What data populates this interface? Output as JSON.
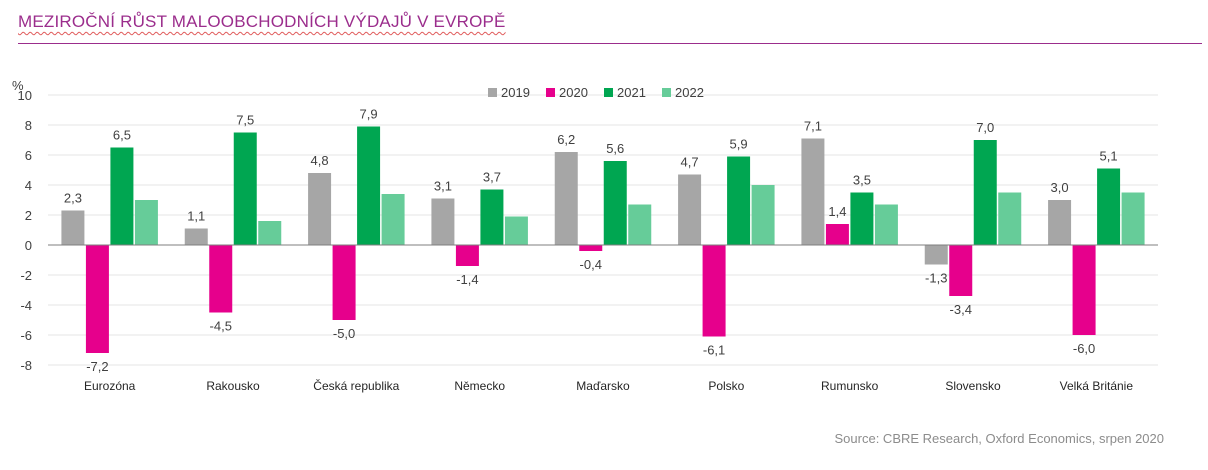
{
  "header": {
    "title": "MEZIROČNÍ RŮST MALOOBCHODNÍCH VÝDAJŮ V EVROPĚ"
  },
  "footer": {
    "source": "Source: CBRE Research, Oxford Economics, srpen 2020"
  },
  "chart_data": {
    "type": "bar",
    "title": "MEZIROČNÍ RŮST MALOOBCHODNÍCH VÝDAJŮ V EVROPĚ",
    "ylabel": "%",
    "xlabel": "",
    "ylim": [
      -8,
      10
    ],
    "yticks": [
      10,
      8,
      6,
      4,
      2,
      0,
      -2,
      -4,
      -6,
      -8
    ],
    "grid": true,
    "legend": "top-center",
    "categories": [
      "Eurozóna",
      "Rakousko",
      "Česká republika",
      "Německo",
      "Maďarsko",
      "Polsko",
      "Rumunsko",
      "Slovensko",
      "Velká Británie"
    ],
    "series": [
      {
        "name": "2019",
        "color": "#a6a6a6",
        "values": [
          2.3,
          1.1,
          4.8,
          3.1,
          6.2,
          4.7,
          7.1,
          -1.3,
          3.0
        ],
        "labels": [
          "2,3",
          "1,1",
          "4,8",
          "3,1",
          "6,2",
          "4,7",
          "7,1",
          "-1,3",
          "3,0"
        ]
      },
      {
        "name": "2020",
        "color": "#e6008c",
        "values": [
          -7.2,
          -4.5,
          -5.0,
          -1.4,
          -0.4,
          -6.1,
          1.4,
          -3.4,
          -6.0
        ],
        "labels": [
          "-7,2",
          "-4,5",
          "-5,0",
          "-1,4",
          "-0,4",
          "-6,1",
          "1,4",
          "-3,4",
          "-6,0"
        ]
      },
      {
        "name": "2021",
        "color": "#00a651",
        "values": [
          6.5,
          7.5,
          7.9,
          3.7,
          5.6,
          5.9,
          3.5,
          7.0,
          5.1
        ],
        "labels": [
          "6,5",
          "7,5",
          "7,9",
          "3,7",
          "5,6",
          "5,9",
          "3,5",
          "7,0",
          "5,1"
        ]
      },
      {
        "name": "2022",
        "color": "#66cc99",
        "values": [
          3.0,
          1.6,
          3.4,
          1.9,
          2.7,
          4.0,
          2.7,
          3.5,
          3.5
        ],
        "labels": null
      }
    ]
  }
}
